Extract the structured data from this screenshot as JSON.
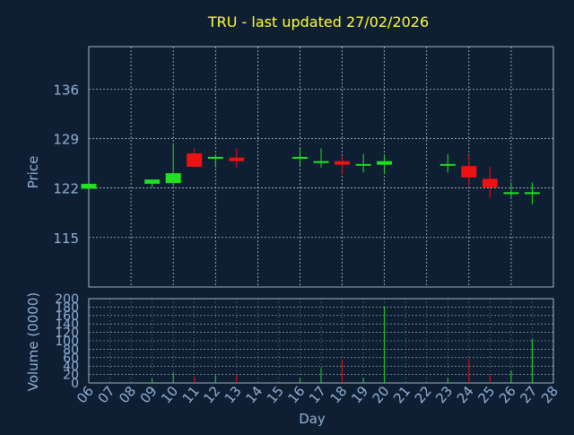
{
  "chart_data": [
    {
      "type": "candlestick",
      "title": "TRU - last updated 27/02/2026",
      "ylabel": "Price",
      "ylim": [
        108,
        142
      ],
      "yticks": [
        115,
        122,
        129,
        136
      ],
      "x_days": [
        "06",
        "07",
        "08",
        "09",
        "10",
        "11",
        "12",
        "13",
        "14",
        "15",
        "16",
        "17",
        "18",
        "19",
        "20",
        "21",
        "22",
        "23",
        "24",
        "25",
        "26",
        "27",
        "28"
      ],
      "candles": [
        {
          "day": "06",
          "open": 121.9,
          "close": 122.6,
          "high": 122.6,
          "low": 121.9,
          "color": "up"
        },
        {
          "day": "09",
          "open": 122.6,
          "close": 123.2,
          "high": 123.2,
          "low": 122.1,
          "color": "up"
        },
        {
          "day": "10",
          "open": 122.7,
          "close": 124.1,
          "high": 128.3,
          "low": 122.3,
          "color": "up"
        },
        {
          "day": "11",
          "open": 126.9,
          "close": 125.0,
          "high": 127.6,
          "low": 124.9,
          "color": "down"
        },
        {
          "day": "12",
          "open": 126.2,
          "close": 126.4,
          "high": 126.6,
          "low": 124.9,
          "color": "up"
        },
        {
          "day": "13",
          "open": 126.3,
          "close": 125.8,
          "high": 127.6,
          "low": 124.9,
          "color": "down"
        },
        {
          "day": "16",
          "open": 126.2,
          "close": 126.4,
          "high": 127.6,
          "low": 125.2,
          "color": "up"
        },
        {
          "day": "17",
          "open": 125.7,
          "close": 125.8,
          "high": 127.6,
          "low": 124.9,
          "color": "up"
        },
        {
          "day": "18",
          "open": 125.8,
          "close": 125.3,
          "high": 126.4,
          "low": 123.9,
          "color": "down"
        },
        {
          "day": "19",
          "open": 125.2,
          "close": 125.4,
          "high": 126.8,
          "low": 124.2,
          "color": "up"
        },
        {
          "day": "20",
          "open": 125.3,
          "close": 125.8,
          "high": 126.6,
          "low": 124.0,
          "color": "up"
        },
        {
          "day": "23",
          "open": 125.2,
          "close": 125.4,
          "high": 126.8,
          "low": 124.2,
          "color": "up"
        },
        {
          "day": "24",
          "open": 125.1,
          "close": 123.5,
          "high": 126.6,
          "low": 122.3,
          "color": "down"
        },
        {
          "day": "25",
          "open": 123.3,
          "close": 122.1,
          "high": 125.0,
          "low": 120.6,
          "color": "down"
        },
        {
          "day": "26",
          "open": 121.2,
          "close": 121.4,
          "high": 122.8,
          "low": 120.7,
          "color": "up"
        },
        {
          "day": "27",
          "open": 121.2,
          "close": 121.4,
          "high": 122.8,
          "low": 119.7,
          "color": "up"
        }
      ]
    },
    {
      "type": "bar",
      "ylabel": "Volume (0000)",
      "xlabel": "Day",
      "ylim": [
        0,
        200
      ],
      "yticks": [
        0,
        20,
        40,
        60,
        80,
        100,
        120,
        140,
        160,
        180,
        200
      ],
      "categories": [
        "06",
        "07",
        "08",
        "09",
        "10",
        "11",
        "12",
        "13",
        "14",
        "15",
        "16",
        "17",
        "18",
        "19",
        "20",
        "21",
        "22",
        "23",
        "24",
        "25",
        "26",
        "27",
        "28"
      ],
      "values": [
        3,
        0,
        0,
        10,
        25,
        15,
        18,
        20,
        0,
        0,
        12,
        35,
        55,
        12,
        182,
        0,
        0,
        12,
        58,
        18,
        30,
        105,
        0
      ],
      "colors": [
        "up",
        "none",
        "none",
        "up",
        "up",
        "down",
        "up",
        "down",
        "none",
        "none",
        "up",
        "up",
        "down",
        "up",
        "up",
        "none",
        "none",
        "up",
        "down",
        "down",
        "up",
        "up",
        "none"
      ]
    }
  ],
  "colors": {
    "background": "#0f1f33",
    "axis_text": "#8fb1d6",
    "title": "#ffff33",
    "grid": "#c8d6e6",
    "up": "#22e022",
    "down": "#ee1111"
  }
}
